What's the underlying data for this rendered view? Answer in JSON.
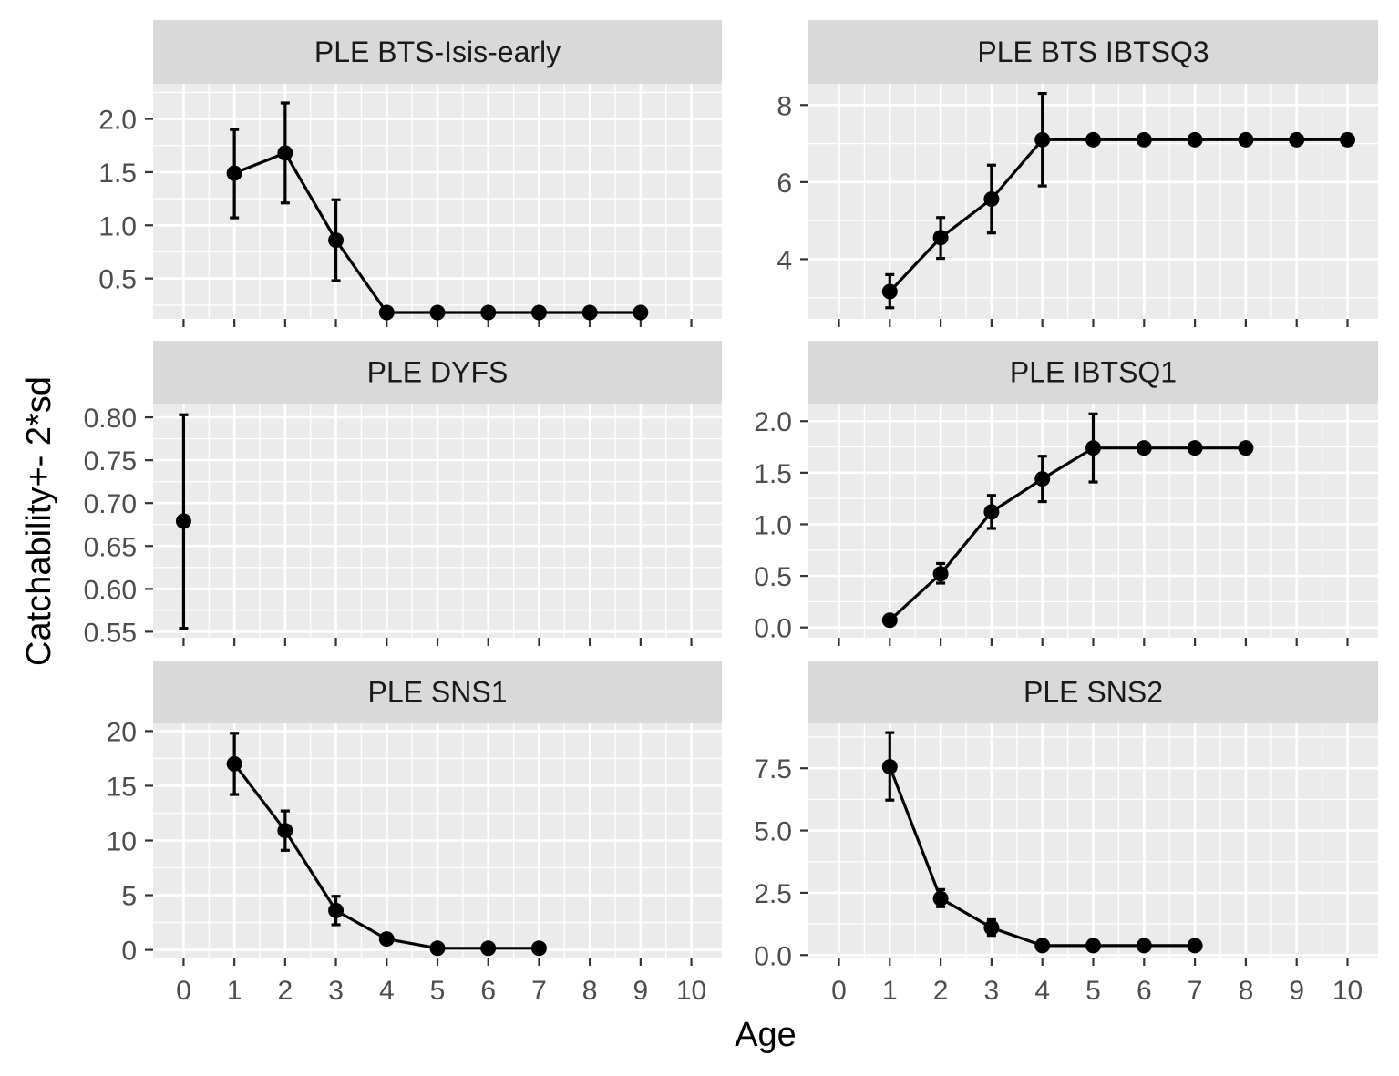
{
  "figure": {
    "xlabel": "Age",
    "ylabel": "Catchability+- 2*sd",
    "background_color": "#ffffff",
    "panel_color": "#ebebeb",
    "strip_color": "#d9d9d9",
    "grid_color": "#ffffff",
    "mark_color": "#000000"
  },
  "chart_data": [
    {
      "type": "line",
      "title": "PLE BTS-Isis-early",
      "xlim": [
        -0.6,
        10.6
      ],
      "ylim": [
        0.12,
        2.33
      ],
      "xticks": [
        0,
        1,
        2,
        3,
        4,
        5,
        6,
        7,
        8,
        9,
        10
      ],
      "yticks": [
        0.5,
        1.0,
        1.5,
        2.0
      ],
      "ytick_labels": [
        "0.5",
        "1.0",
        "1.5",
        "2.0"
      ],
      "show_xtick_labels": false,
      "points": [
        {
          "x": 1,
          "y": 1.49,
          "lo": 1.07,
          "hi": 1.9
        },
        {
          "x": 2,
          "y": 1.68,
          "lo": 1.21,
          "hi": 2.15
        },
        {
          "x": 3,
          "y": 0.86,
          "lo": 0.48,
          "hi": 1.24
        },
        {
          "x": 4,
          "y": 0.18
        },
        {
          "x": 5,
          "y": 0.18
        },
        {
          "x": 6,
          "y": 0.18
        },
        {
          "x": 7,
          "y": 0.18
        },
        {
          "x": 8,
          "y": 0.18
        },
        {
          "x": 9,
          "y": 0.18
        }
      ]
    },
    {
      "type": "line",
      "title": "PLE BTS IBTSQ3",
      "xlim": [
        -0.6,
        10.6
      ],
      "ylim": [
        2.45,
        8.55
      ],
      "xticks": [
        0,
        1,
        2,
        3,
        4,
        5,
        6,
        7,
        8,
        9,
        10
      ],
      "yticks": [
        4,
        6,
        8
      ],
      "ytick_labels": [
        "4",
        "6",
        "8"
      ],
      "show_xtick_labels": false,
      "points": [
        {
          "x": 1,
          "y": 3.16,
          "lo": 2.74,
          "hi": 3.6
        },
        {
          "x": 2,
          "y": 4.56,
          "lo": 4.02,
          "hi": 5.08
        },
        {
          "x": 3,
          "y": 5.56,
          "lo": 4.68,
          "hi": 6.44
        },
        {
          "x": 4,
          "y": 7.1,
          "lo": 5.9,
          "hi": 8.3
        },
        {
          "x": 5,
          "y": 7.1
        },
        {
          "x": 6,
          "y": 7.1
        },
        {
          "x": 7,
          "y": 7.1
        },
        {
          "x": 8,
          "y": 7.1
        },
        {
          "x": 9,
          "y": 7.1
        },
        {
          "x": 10,
          "y": 7.1
        }
      ]
    },
    {
      "type": "line",
      "title": "PLE DYFS",
      "xlim": [
        -0.6,
        10.6
      ],
      "ylim": [
        0.543,
        0.816
      ],
      "xticks": [
        0,
        1,
        2,
        3,
        4,
        5,
        6,
        7,
        8,
        9,
        10
      ],
      "yticks": [
        0.55,
        0.6,
        0.65,
        0.7,
        0.75,
        0.8
      ],
      "ytick_labels": [
        "0.55",
        "0.60",
        "0.65",
        "0.70",
        "0.75",
        "0.80"
      ],
      "show_xtick_labels": false,
      "points": [
        {
          "x": 0,
          "y": 0.679,
          "lo": 0.554,
          "hi": 0.803
        }
      ]
    },
    {
      "type": "line",
      "title": "PLE IBTSQ1",
      "xlim": [
        -0.6,
        10.6
      ],
      "ylim": [
        -0.1,
        2.17
      ],
      "xticks": [
        0,
        1,
        2,
        3,
        4,
        5,
        6,
        7,
        8,
        9,
        10
      ],
      "yticks": [
        0.0,
        0.5,
        1.0,
        1.5,
        2.0
      ],
      "ytick_labels": [
        "0.0",
        "0.5",
        "1.0",
        "1.5",
        "2.0"
      ],
      "show_xtick_labels": false,
      "points": [
        {
          "x": 1,
          "y": 0.07
        },
        {
          "x": 2,
          "y": 0.52,
          "lo": 0.43,
          "hi": 0.62
        },
        {
          "x": 3,
          "y": 1.12,
          "lo": 0.96,
          "hi": 1.28
        },
        {
          "x": 4,
          "y": 1.44,
          "lo": 1.22,
          "hi": 1.66
        },
        {
          "x": 5,
          "y": 1.74,
          "lo": 1.41,
          "hi": 2.07
        },
        {
          "x": 6,
          "y": 1.74
        },
        {
          "x": 7,
          "y": 1.74
        },
        {
          "x": 8,
          "y": 1.74
        }
      ]
    },
    {
      "type": "line",
      "title": "PLE SNS1",
      "xlim": [
        -0.6,
        10.6
      ],
      "ylim": [
        -0.7,
        20.7
      ],
      "xticks": [
        0,
        1,
        2,
        3,
        4,
        5,
        6,
        7,
        8,
        9,
        10
      ],
      "yticks": [
        0,
        5,
        10,
        15,
        20
      ],
      "ytick_labels": [
        "0",
        "5",
        "10",
        "15",
        "20"
      ],
      "show_xtick_labels": true,
      "points": [
        {
          "x": 1,
          "y": 17.0,
          "lo": 14.2,
          "hi": 19.8
        },
        {
          "x": 2,
          "y": 10.9,
          "lo": 9.1,
          "hi": 12.7
        },
        {
          "x": 3,
          "y": 3.6,
          "lo": 2.3,
          "hi": 4.9
        },
        {
          "x": 4,
          "y": 1.0
        },
        {
          "x": 5,
          "y": 0.15
        },
        {
          "x": 6,
          "y": 0.15
        },
        {
          "x": 7,
          "y": 0.15
        }
      ]
    },
    {
      "type": "line",
      "title": "PLE SNS2",
      "xlim": [
        -0.6,
        10.6
      ],
      "ylim": [
        -0.1,
        9.3
      ],
      "xticks": [
        0,
        1,
        2,
        3,
        4,
        5,
        6,
        7,
        8,
        9,
        10
      ],
      "yticks": [
        0.0,
        2.5,
        5.0,
        7.5
      ],
      "ytick_labels": [
        "0.0",
        "2.5",
        "5.0",
        "7.5"
      ],
      "show_xtick_labels": true,
      "points": [
        {
          "x": 1,
          "y": 7.56,
          "lo": 6.22,
          "hi": 8.93
        },
        {
          "x": 2,
          "y": 2.27,
          "lo": 1.94,
          "hi": 2.63
        },
        {
          "x": 3,
          "y": 1.1,
          "lo": 0.79,
          "hi": 1.42
        },
        {
          "x": 4,
          "y": 0.38
        },
        {
          "x": 5,
          "y": 0.38
        },
        {
          "x": 6,
          "y": 0.38
        },
        {
          "x": 7,
          "y": 0.38
        }
      ]
    }
  ]
}
